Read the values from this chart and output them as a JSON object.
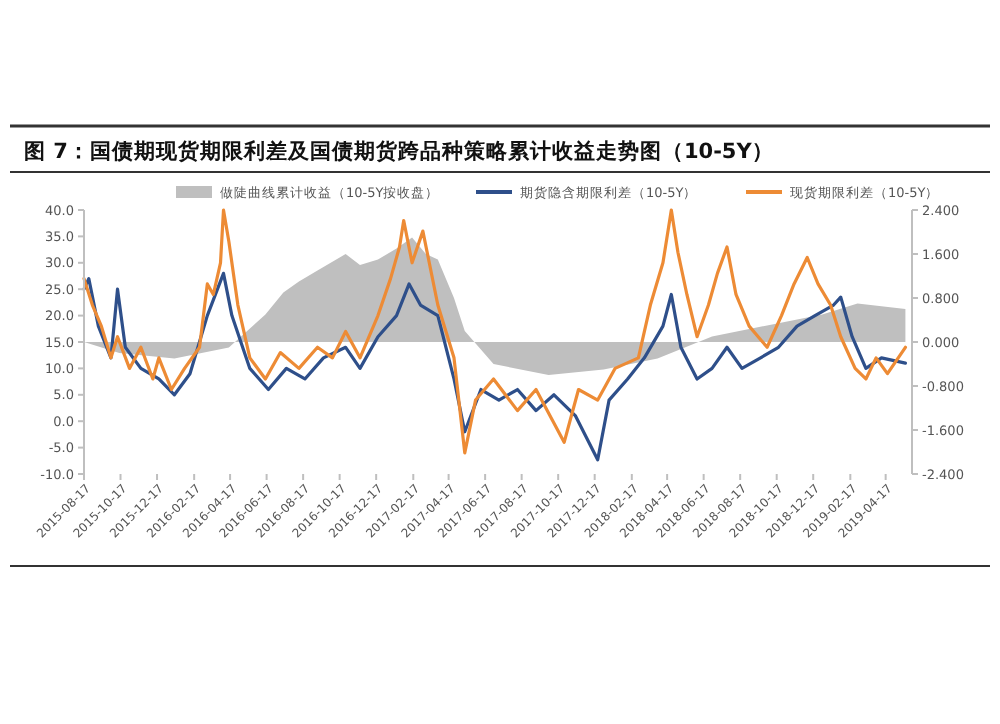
{
  "chart_data": {
    "type": "line",
    "title": "图 7：国债期现货期限利差及国债期货跨品种策略累计收益走势图（10-5Y）",
    "legend": "top",
    "grid": false,
    "xlim": [
      "2015-08-17",
      "2019-05-31"
    ],
    "xticks": [
      "2015-08-17",
      "2015-10-17",
      "2015-12-17",
      "2016-02-17",
      "2016-04-17",
      "2016-06-17",
      "2016-08-17",
      "2016-10-17",
      "2016-12-17",
      "2017-02-17",
      "2017-04-17",
      "2017-06-17",
      "2017-08-17",
      "2017-10-17",
      "2017-12-17",
      "2018-02-17",
      "2018-04-17",
      "2018-06-17",
      "2018-08-17",
      "2018-10-17",
      "2018-12-17",
      "2019-02-17",
      "2019-04-17"
    ],
    "ylim": [
      -10,
      40
    ],
    "yticks": [
      {
        "value": -10,
        "label": "-10.0"
      },
      {
        "value": -5,
        "label": "-5.0"
      },
      {
        "value": 0,
        "label": "0.0"
      },
      {
        "value": 5,
        "label": "5.0"
      },
      {
        "value": 10,
        "label": "10.0"
      },
      {
        "value": 15,
        "label": "15.0"
      },
      {
        "value": 20,
        "label": "20.0"
      },
      {
        "value": 25,
        "label": "25.0"
      },
      {
        "value": 30,
        "label": "30.0"
      },
      {
        "value": 35,
        "label": "35.0"
      },
      {
        "value": 40,
        "label": "40.0"
      }
    ],
    "y2lim": [
      -2.4,
      2.4
    ],
    "y2ticks": [
      {
        "value": -2.4,
        "label": "-2.400"
      },
      {
        "value": -1.6,
        "label": "-1.600"
      },
      {
        "value": -0.8,
        "label": "-0.800"
      },
      {
        "value": 0,
        "label": "0.000"
      },
      {
        "value": 0.8,
        "label": "0.800"
      },
      {
        "value": 1.6,
        "label": "1.600"
      },
      {
        "value": 2.4,
        "label": "2.400"
      }
    ],
    "series": [
      {
        "name": "做陡曲线累计收益（10-5Y按收盘）",
        "type": "area",
        "axis": "y2",
        "color": "#bfbfbf",
        "x": [
          "2015-08-17",
          "2015-10-15",
          "2016-01-15",
          "2016-04-15",
          "2016-06-15",
          "2016-07-15",
          "2016-08-10",
          "2016-09-10",
          "2016-10-27",
          "2016-11-20",
          "2016-12-20",
          "2017-01-20",
          "2017-02-15",
          "2017-03-10",
          "2017-03-30",
          "2017-04-26",
          "2017-05-14",
          "2017-07-01",
          "2017-10-01",
          "2018-01-01",
          "2018-04-01",
          "2018-07-01",
          "2018-10-01",
          "2019-01-01",
          "2019-03-01",
          "2019-05-20"
        ],
        "values": [
          0,
          -0.2,
          -0.3,
          -0.1,
          0.5,
          0.9,
          1.1,
          1.3,
          1.6,
          1.4,
          1.5,
          1.7,
          1.9,
          1.6,
          1.5,
          0.8,
          0.2,
          -0.4,
          -0.6,
          -0.5,
          -0.3,
          0.1,
          0.3,
          0.5,
          0.7,
          0.6
        ]
      },
      {
        "name": "期货隐含期限利差（10-5Y）",
        "color": "#2e4f8a",
        "x": [
          "2015-08-17",
          "2015-08-25",
          "2015-09-10",
          "2015-10-01",
          "2015-10-12",
          "2015-10-25",
          "2015-11-20",
          "2015-12-20",
          "2016-01-15",
          "2016-02-10",
          "2016-03-10",
          "2016-04-06",
          "2016-04-20",
          "2016-05-20",
          "2016-06-20",
          "2016-07-20",
          "2016-08-20",
          "2016-09-20",
          "2016-10-27",
          "2016-11-20",
          "2016-12-20",
          "2017-01-20",
          "2017-02-10",
          "2017-03-01",
          "2017-03-30",
          "2017-04-26",
          "2017-05-14",
          "2017-06-10",
          "2017-07-10",
          "2017-08-10",
          "2017-09-10",
          "2017-10-10",
          "2017-11-15",
          "2017-12-22",
          "2018-01-10",
          "2018-02-10",
          "2018-03-10",
          "2018-04-10",
          "2018-04-24",
          "2018-05-10",
          "2018-06-06",
          "2018-07-01",
          "2018-07-26",
          "2018-08-20",
          "2018-09-20",
          "2018-10-20",
          "2018-11-20",
          "2018-12-20",
          "2019-01-20",
          "2019-02-01",
          "2019-02-20",
          "2019-03-15",
          "2019-04-10",
          "2019-05-20"
        ],
        "values": [
          25,
          27,
          18,
          12,
          25,
          14,
          10,
          8,
          5,
          9,
          20,
          28,
          20,
          10,
          6,
          10,
          8,
          12,
          14,
          10,
          16,
          20,
          26,
          22,
          20,
          8,
          -2,
          6,
          4,
          6,
          2,
          5,
          1,
          -7.3,
          4,
          8,
          12,
          18,
          24,
          14,
          8,
          10,
          14,
          10,
          12,
          14,
          18,
          20,
          22,
          23.5,
          16,
          10,
          12,
          11
        ]
      },
      {
        "name": "现货期限利差（10-5Y）",
        "color": "#ed8b35",
        "x": [
          "2015-08-17",
          "2015-08-31",
          "2015-09-15",
          "2015-10-01",
          "2015-10-12",
          "2015-11-01",
          "2015-11-20",
          "2015-12-10",
          "2015-12-20",
          "2016-01-10",
          "2016-02-01",
          "2016-02-26",
          "2016-03-10",
          "2016-03-20",
          "2016-04-01",
          "2016-04-06",
          "2016-04-15",
          "2016-04-30",
          "2016-05-20",
          "2016-06-15",
          "2016-07-10",
          "2016-08-10",
          "2016-09-10",
          "2016-10-05",
          "2016-10-27",
          "2016-11-20",
          "2016-12-20",
          "2017-01-10",
          "2017-01-25",
          "2017-02-01",
          "2017-02-15",
          "2017-03-05",
          "2017-03-30",
          "2017-04-26",
          "2017-05-14",
          "2017-06-01",
          "2017-07-01",
          "2017-08-10",
          "2017-09-10",
          "2017-10-27",
          "2017-11-20",
          "2017-12-22",
          "2018-01-20",
          "2018-02-28",
          "2018-03-20",
          "2018-04-10",
          "2018-04-24",
          "2018-05-05",
          "2018-05-20",
          "2018-06-06",
          "2018-06-25",
          "2018-07-10",
          "2018-07-26",
          "2018-08-10",
          "2018-09-01",
          "2018-10-01",
          "2018-10-25",
          "2018-11-15",
          "2018-12-07",
          "2018-12-25",
          "2019-01-15",
          "2019-02-01",
          "2019-02-25",
          "2019-03-15",
          "2019-04-01",
          "2019-04-20",
          "2019-05-20"
        ],
        "values": [
          27,
          22,
          18,
          12,
          16,
          10,
          14,
          8,
          12,
          6,
          10,
          14,
          26,
          24,
          30,
          40,
          34,
          22,
          12,
          8,
          13,
          10,
          14,
          12,
          17,
          12,
          20,
          27,
          33,
          38,
          30,
          36,
          22,
          12,
          -6,
          4,
          8,
          2,
          6,
          -4,
          6,
          4,
          10,
          12,
          22,
          30,
          40,
          32,
          24,
          16,
          22,
          28,
          33,
          24,
          18,
          14,
          20,
          26,
          31,
          26,
          22,
          16,
          10,
          8,
          12,
          9,
          14
        ]
      }
    ]
  }
}
